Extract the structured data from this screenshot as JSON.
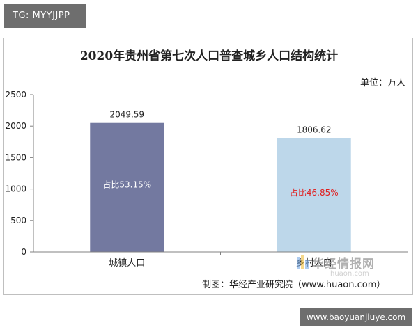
{
  "badge_top": "TG: MYYJJPP",
  "watermark": {
    "text": "华经情报网",
    "sub": "huaon.com"
  },
  "badge_bottom": "www.baoyuanjiuye.com",
  "colors": {
    "urban": "#7379a0",
    "rural": "#bdd7ea",
    "axis": "#808080",
    "share_text_urban": "#ffffff",
    "share_text_rural": "#e02020"
  },
  "chart_data": {
    "type": "bar",
    "title": "2020年贵州省第七次人口普查城乡人口结构统计",
    "unit": "单位：万人",
    "source": "制图：华经产业研究院（www.huaon.com）",
    "categories": [
      "城镇人口",
      "乡村人口"
    ],
    "values": [
      2049.59,
      1806.62
    ],
    "value_labels": [
      "2049.59",
      "1806.62"
    ],
    "share_labels": [
      "占比53.15%",
      "占比46.85%"
    ],
    "ylim": [
      0,
      2500
    ],
    "yticks": [
      0,
      500,
      1000,
      1500,
      2000,
      2500
    ],
    "grid": false
  }
}
